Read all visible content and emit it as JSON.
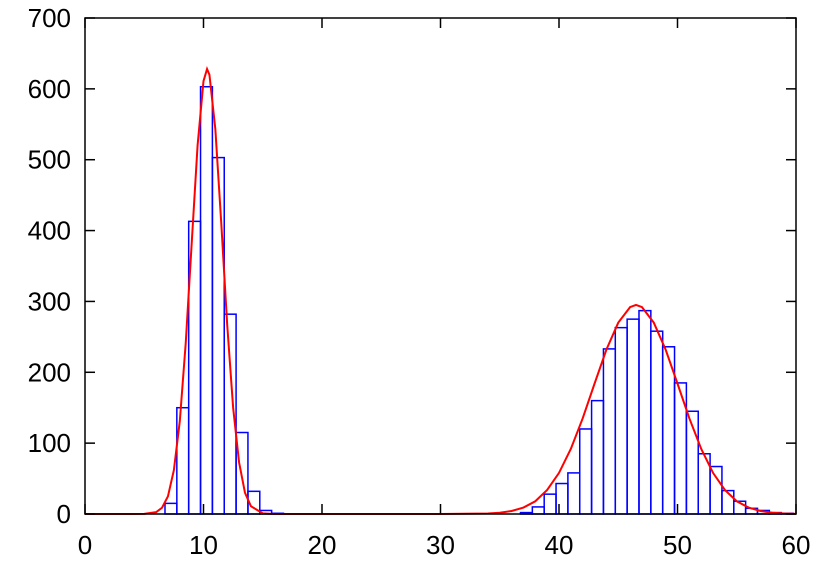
{
  "chart_data": {
    "type": "histogram",
    "bins": [
      0.75,
      1.75,
      2.75,
      3.75,
      4.75,
      5.75,
      6.75,
      7.75,
      8.75,
      9.75,
      10.75,
      11.75,
      12.75,
      13.75,
      14.75,
      15.75,
      16.75,
      17.75,
      18.75,
      19.75,
      20.75,
      21.75,
      22.75,
      23.75,
      24.75,
      25.75,
      26.75,
      27.75,
      28.75,
      29.75,
      30.75,
      31.75,
      32.75,
      33.75,
      34.75,
      35.75,
      36.75,
      37.75,
      38.75,
      39.75,
      40.75,
      41.75,
      42.75,
      43.75,
      44.75,
      45.75,
      46.75,
      47.75,
      48.75,
      49.75,
      50.75,
      51.75,
      52.75,
      53.75,
      54.75,
      55.75,
      56.75,
      57.75,
      58.75,
      59.75
    ],
    "counts": [
      0,
      0,
      0,
      0,
      0,
      0,
      15,
      150,
      413,
      603,
      503,
      282,
      115,
      32,
      5,
      1,
      0,
      0,
      0,
      0,
      0,
      0,
      0,
      0,
      0,
      0,
      0,
      0,
      0,
      0,
      0,
      0,
      0,
      0,
      0,
      0,
      2,
      10,
      28,
      43,
      58,
      120,
      160,
      233,
      263,
      275,
      287,
      258,
      236,
      185,
      145,
      85,
      67,
      33,
      18,
      8,
      5,
      2,
      1
    ],
    "color": "#0000ff",
    "fit": {
      "x": [
        0,
        4,
        5,
        6,
        6.5,
        7,
        7.5,
        8,
        8.5,
        9,
        9.5,
        10,
        10.3,
        10.5,
        11,
        11.5,
        12,
        12.5,
        13,
        13.5,
        14,
        15,
        16,
        20,
        30,
        34,
        35,
        36,
        37,
        38,
        39,
        40,
        41,
        42,
        43,
        44,
        45,
        46,
        46.5,
        47,
        48,
        49,
        50,
        51,
        52,
        53,
        54,
        55,
        56,
        57,
        58,
        59,
        60
      ],
      "values": [
        0,
        0,
        0.2,
        2.6,
        8.8,
        25,
        62,
        131,
        241,
        381,
        520,
        611,
        628,
        620,
        543,
        410,
        267,
        150,
        73,
        30,
        11,
        0.9,
        0,
        0,
        0,
        0.7,
        1.8,
        4.2,
        9.1,
        18,
        34,
        58,
        92,
        135,
        184,
        232,
        270,
        292,
        295,
        292,
        270,
        232,
        184,
        135,
        92,
        58,
        34,
        18,
        9.1,
        4.2,
        1.8,
        0.7,
        0.2
      ],
      "color": "#ff0000"
    },
    "xlim": [
      0,
      60
    ],
    "xticks": [
      0,
      10,
      20,
      30,
      40,
      50,
      60
    ],
    "ylim": [
      0,
      700
    ],
    "yticks": [
      0,
      100,
      200,
      300,
      400,
      500,
      600,
      700
    ]
  }
}
